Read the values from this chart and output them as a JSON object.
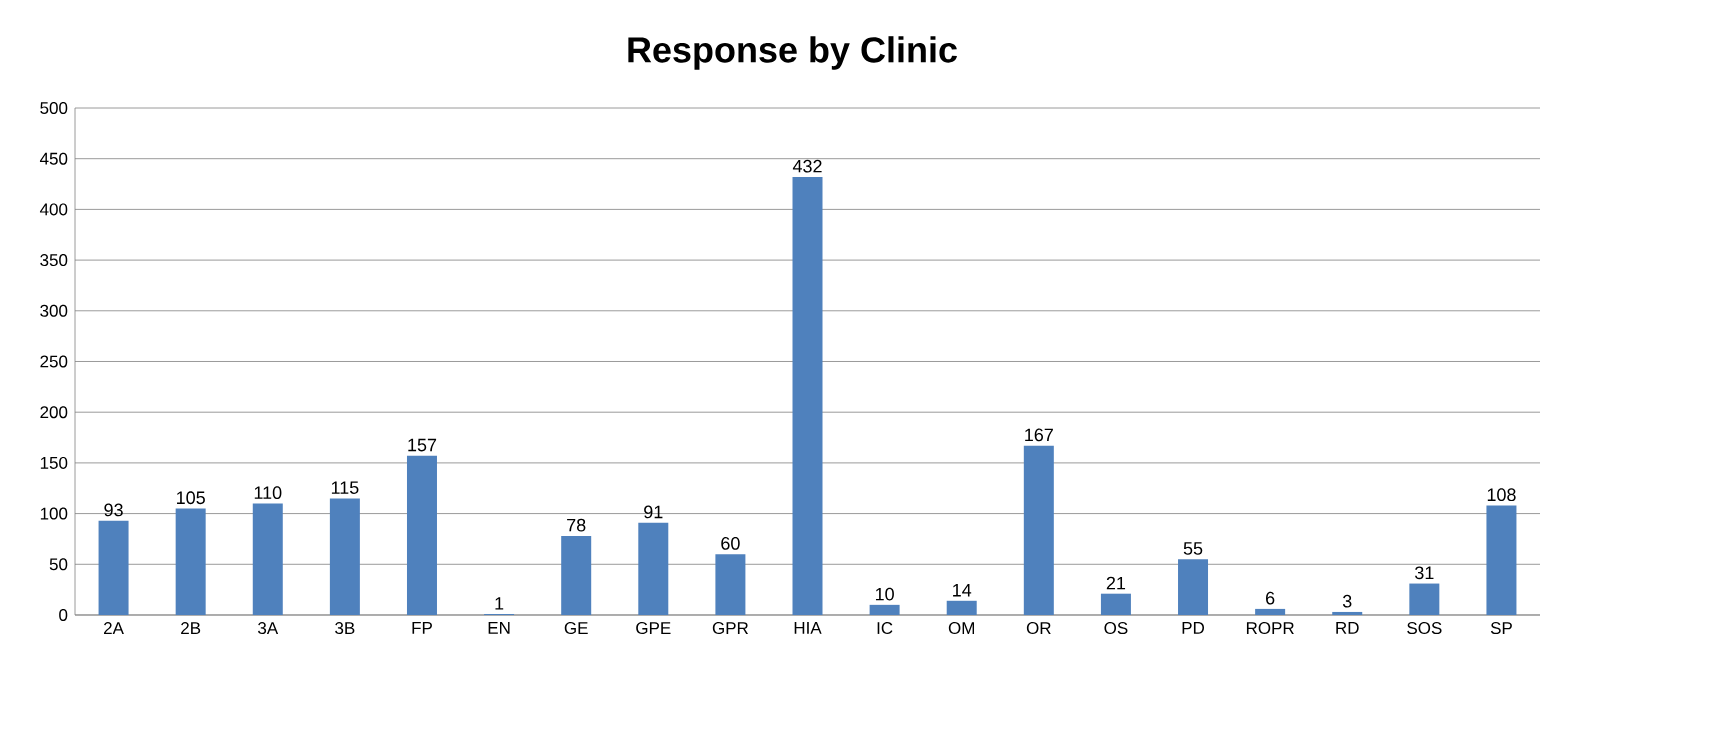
{
  "chart_data": {
    "type": "bar",
    "title": "Response by Clinic",
    "categories": [
      "2A",
      "2B",
      "3A",
      "3B",
      "FP",
      "EN",
      "GE",
      "GPE",
      "GPR",
      "HIA",
      "IC",
      "OM",
      "OR",
      "OS",
      "PD",
      "ROPR",
      "RD",
      "SOS",
      "SP"
    ],
    "values": [
      93,
      105,
      110,
      115,
      157,
      1,
      78,
      91,
      60,
      432,
      10,
      14,
      167,
      21,
      55,
      6,
      3,
      31,
      108
    ],
    "color": "#4f81bd",
    "ylim": [
      0,
      500
    ],
    "yticks": [
      0,
      50,
      100,
      150,
      200,
      250,
      300,
      350,
      400,
      450,
      500
    ],
    "grid": "y",
    "data_labels": true
  }
}
